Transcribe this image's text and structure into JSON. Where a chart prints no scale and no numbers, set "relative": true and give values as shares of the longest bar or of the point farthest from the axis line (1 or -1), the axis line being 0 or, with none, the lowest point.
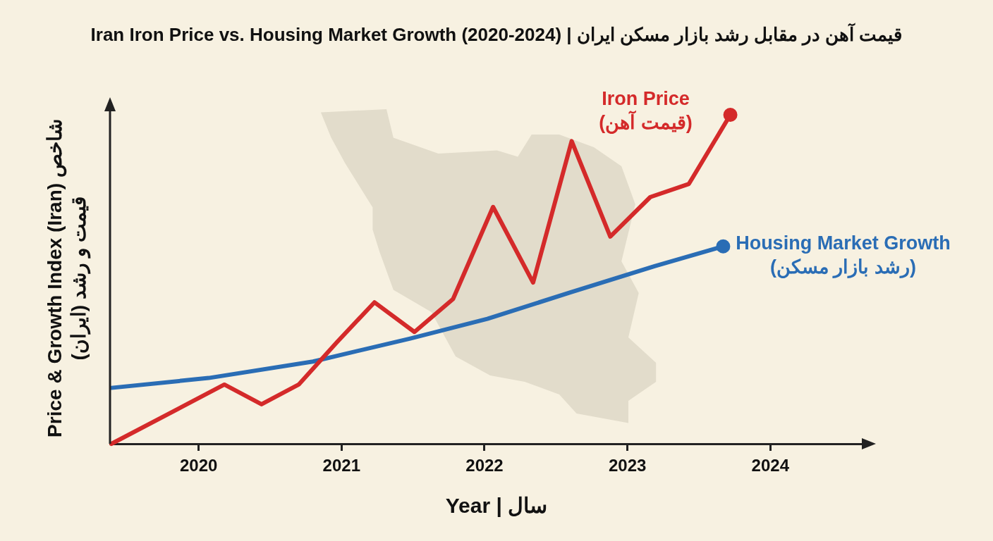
{
  "chart_data": {
    "type": "line",
    "title": "Iran Iron Price vs. Housing Market Growth (2020-2024) | قیمت آهن در مقابل رشد بازار مسکن ایران",
    "xlabel": "Year | سال",
    "ylabel": "Price & Growth Index (Iran) شاخص قیمت و رشد (ایران)",
    "relative": true,
    "xlim": [
      2019.38,
      2024.64
    ],
    "xticks": [
      2020,
      2021,
      2022,
      2023,
      2024
    ],
    "grid": false,
    "legend": false,
    "series": [
      {
        "name": "Iron Price (قیمت آهن)",
        "color": "#d42a2a",
        "x": [
          2019.39,
          2020.18,
          2020.44,
          2020.7,
          2020.97,
          2021.23,
          2021.51,
          2021.78,
          2022.06,
          2022.34,
          2022.61,
          2022.88,
          2023.16,
          2023.43,
          2023.72
        ],
        "values": [
          0,
          0.18,
          0.12,
          0.18,
          0.31,
          0.43,
          0.34,
          0.44,
          0.72,
          0.49,
          0.92,
          0.63,
          0.75,
          0.79,
          1
        ]
      },
      {
        "name": "Housing Market Growth (رشد بازار مسکن)",
        "color": "#2a6db5",
        "x": [
          2019.39,
          2020.07,
          2020.8,
          2021.48,
          2022.02,
          2022.6,
          2023.19,
          2023.67
        ],
        "values": [
          0.17,
          0.2,
          0.25,
          0.32,
          0.38,
          0.46,
          0.54,
          0.6
        ]
      }
    ]
  }
}
